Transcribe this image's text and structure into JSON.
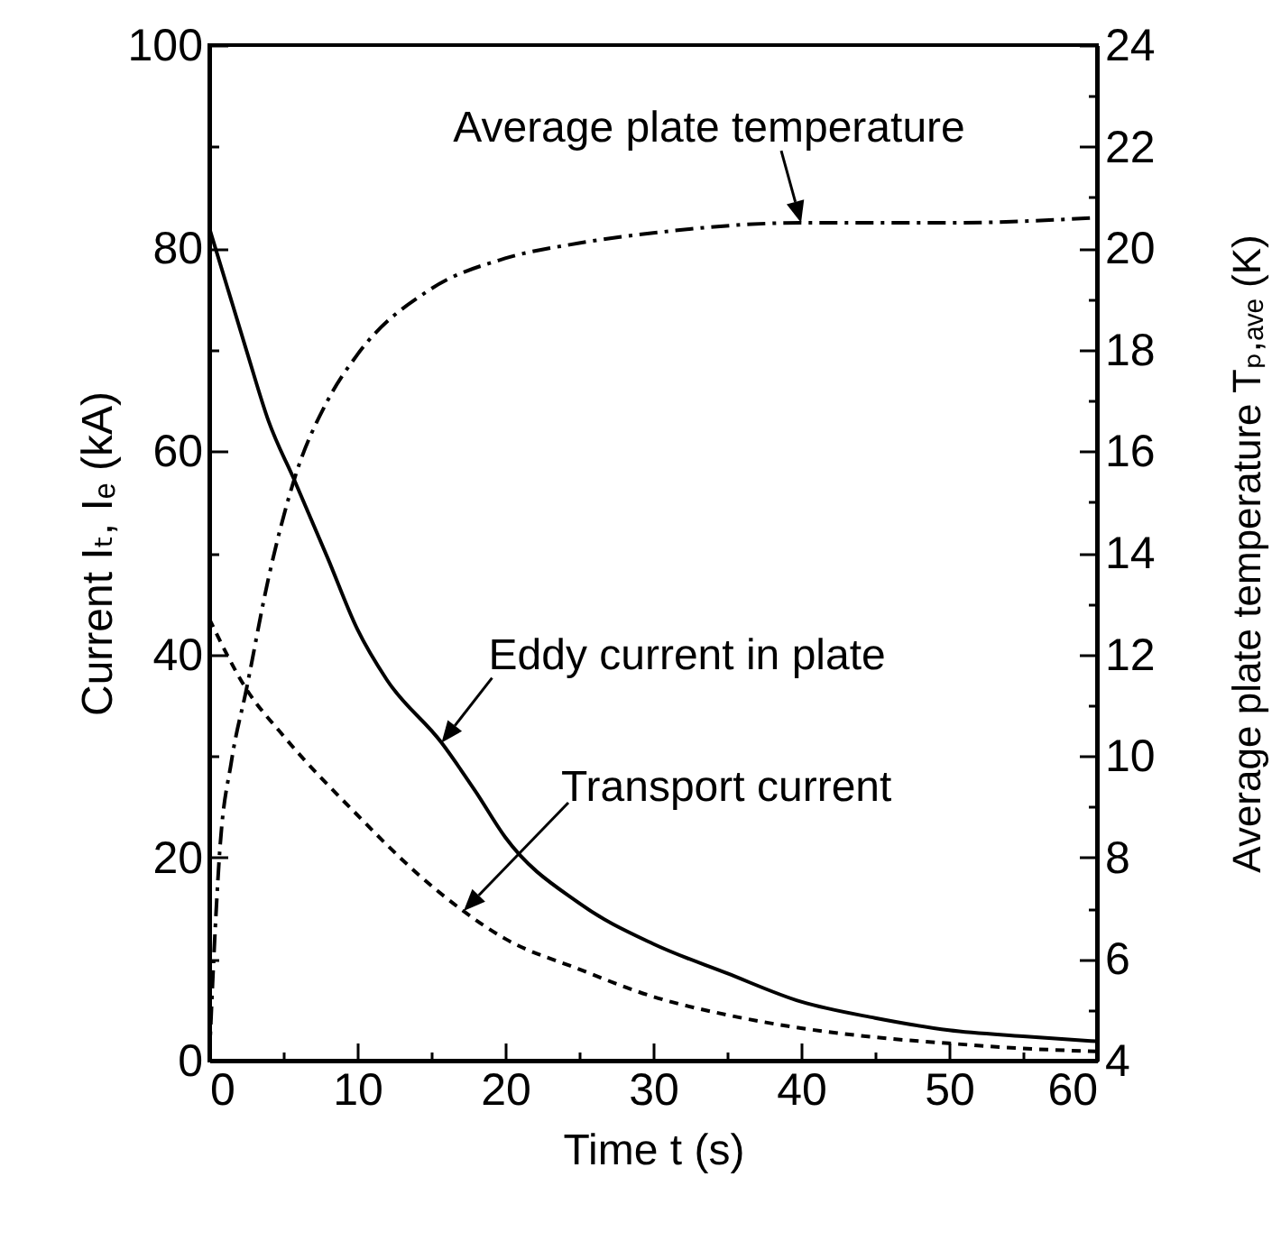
{
  "chart_data": {
    "type": "line",
    "xlabel": "Time  t (s)",
    "ylabel": "Current  Iₜ, Iₑ (kA)",
    "y2label": "Average plate temperature  Tₚ,ₐᵥₑ (K)",
    "xlim": [
      0,
      60
    ],
    "xticks": [
      0,
      {
        "value": 5,
        "label": null
      },
      10,
      {
        "value": 15,
        "label": null
      },
      20,
      {
        "value": 25,
        "label": null
      },
      30,
      {
        "value": 35,
        "label": null
      },
      40,
      {
        "value": 45,
        "label": null
      },
      50,
      {
        "value": 55,
        "label": null
      },
      60
    ],
    "ylim": [
      0,
      100
    ],
    "yticks": [
      0,
      {
        "value": 10,
        "label": null
      },
      20,
      {
        "value": 30,
        "label": null
      },
      40,
      {
        "value": 50,
        "label": null
      },
      60,
      {
        "value": 70,
        "label": null
      },
      80,
      {
        "value": 90,
        "label": null
      },
      100
    ],
    "y2lim": [
      4,
      24
    ],
    "y2ticks": [
      4,
      {
        "value": 5,
        "label": null
      },
      6,
      {
        "value": 7,
        "label": null
      },
      8,
      {
        "value": 9,
        "label": null
      },
      10,
      {
        "value": 11,
        "label": null
      },
      12,
      {
        "value": 13,
        "label": null
      },
      14,
      {
        "value": 15,
        "label": null
      },
      16,
      {
        "value": 17,
        "label": null
      },
      18,
      {
        "value": 19,
        "label": null
      },
      20,
      {
        "value": 21,
        "label": null
      },
      22,
      {
        "value": 23,
        "label": null
      },
      24
    ],
    "grid": false,
    "annotations": [
      {
        "text": "Eddy current in plate",
        "x": 15.7,
        "y": 31.3
      },
      "Transport current",
      {
        "text": "Average plate temperature",
        "x": 40,
        "y": 82.5
      }
    ],
    "series": [
      {
        "color": "#000000",
        "line_style": "solid",
        "x": [
          0,
          2.5,
          4,
          5.8,
          8,
          10,
          12,
          15.7,
          18,
          20,
          25,
          30,
          35,
          40,
          45,
          50,
          55,
          60
        ],
        "values": [
          82,
          70,
          63,
          57,
          49.5,
          42.5,
          37.5,
          31.3,
          26.5,
          22,
          15.5,
          11.5,
          8.6,
          5.8,
          4.2,
          3,
          2.4,
          1.9
        ]
      },
      {
        "color": "#000000",
        "line_style": "dashed",
        "x": [
          0,
          2.5,
          5,
          10,
          14,
          17.2,
          20,
          25,
          30,
          35,
          40,
          45,
          50,
          55,
          60
        ],
        "values": [
          43.5,
          36.6,
          32,
          24.2,
          18.5,
          14.7,
          12,
          9,
          6.3,
          4.5,
          3.2,
          2.3,
          1.7,
          1.2,
          0.9
        ]
      },
      {
        "color": "#000000",
        "line_style": "dashdot",
        "axis": "y2",
        "x": [
          0,
          0.3,
          0.7,
          1.5,
          2.5,
          4,
          5.8,
          8,
          10,
          15,
          20,
          25,
          30,
          40,
          50,
          60
        ],
        "values": [
          4,
          6,
          8.1,
          9.9,
          11.3,
          13.5,
          15.5,
          17,
          17.9,
          19.2,
          19.8,
          20.1,
          20.3,
          20.5,
          20.5,
          20.6
        ]
      }
    ]
  }
}
